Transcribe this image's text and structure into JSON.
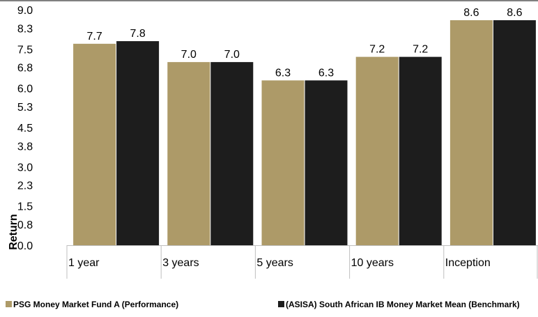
{
  "chart_data": {
    "type": "bar",
    "title": "",
    "xlabel": "",
    "ylabel": "Return",
    "ylim": [
      0,
      9.0
    ],
    "yticks": [
      "0.0",
      "0.8",
      "1.5",
      "2.3",
      "3.0",
      "3.8",
      "4.5",
      "5.3",
      "6.0",
      "6.8",
      "7.5",
      "8.3",
      "9.0"
    ],
    "categories": [
      "1 year",
      "3 years",
      "5 years",
      "10 years",
      "Inception"
    ],
    "series": [
      {
        "name": "PSG Money Market Fund A (Performance)",
        "color": "#ad9a68",
        "values": [
          7.7,
          7.0,
          6.3,
          7.2,
          8.6
        ],
        "labels": [
          "7.7",
          "7.0",
          "6.3",
          "7.2",
          "8.6"
        ]
      },
      {
        "name": "(ASISA) South African IB Money Market Mean (Benchmark)",
        "color": "#1d1d1d",
        "values": [
          7.8,
          7.0,
          6.3,
          7.2,
          8.6
        ],
        "labels": [
          "7.8",
          "7.0",
          "6.3",
          "7.2",
          "8.6"
        ]
      }
    ],
    "grid": false,
    "legend_position": "bottom"
  }
}
